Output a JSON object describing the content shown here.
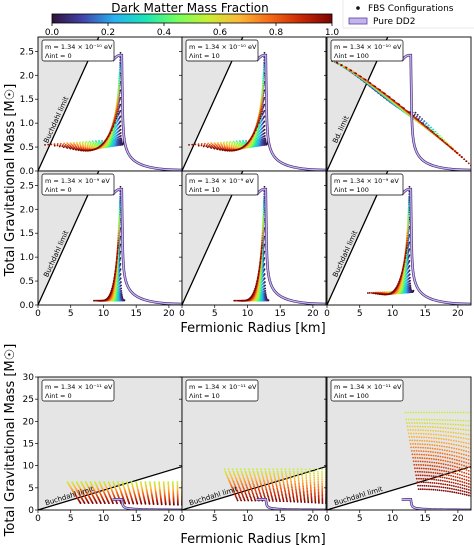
{
  "colorbar": {
    "title": "Dark Matter Mass Fraction",
    "ticks": [
      "0.0",
      "0.2",
      "0.4",
      "0.6",
      "0.8",
      "1.0"
    ],
    "colormap": [
      "#30123b",
      "#4145ab",
      "#2ab0f0",
      "#1ae4b6",
      "#72fe5e",
      "#c8ef34",
      "#fbb938",
      "#f56918",
      "#c92903",
      "#7a0403"
    ]
  },
  "legend": {
    "items": [
      {
        "label": "FBS Configurations",
        "marker": "dot",
        "color": "#111111"
      },
      {
        "label": "Pure DD2",
        "marker": "line",
        "color": "#8c7fd0"
      }
    ]
  },
  "axes_labels": {
    "top_ylabel": "Total Gravitational Mass [M☉]",
    "top_xlabel": "Fermionic Radius [km]",
    "bottom_ylabel": "Total Gravitational Mass [M☉]",
    "bottom_xlabel": "Fermionic Radius [km]"
  },
  "chart_data": [
    {
      "type": "scatter",
      "block": "top",
      "xlim": [
        0,
        22
      ],
      "ylim": [
        0,
        2.8
      ],
      "xticks": [
        0,
        5,
        10,
        15,
        20
      ],
      "yticks": [
        0.0,
        0.5,
        1.0,
        1.5,
        2.0,
        2.5
      ],
      "xlabel": "Fermionic Radius [km]",
      "ylabel": "Total Gravitational Mass [M☉]",
      "panels": [
        {
          "id": "m1e-10_L0",
          "row": 0,
          "col": 0,
          "mass": "m = 1.34 × 10⁻¹⁰ eV",
          "lambda": "Λint = 0",
          "buchdahl_label": "Buchdahl limit",
          "dd2_peak": [
            12.6,
            2.42
          ],
          "start_mass": 0.62,
          "start_x": 0.5,
          "arc_extent": 0.95
        },
        {
          "id": "m1e-10_L10",
          "row": 0,
          "col": 1,
          "mass": "m = 1.34 × 10⁻¹⁰ eV",
          "lambda": "Λint = 10",
          "buchdahl_label": "",
          "dd2_peak": [
            12.6,
            2.42
          ],
          "start_mass": 0.62,
          "start_x": 0.5,
          "arc_extent": 0.95
        },
        {
          "id": "m1e-10_L100",
          "row": 0,
          "col": 2,
          "mass": "m = 1.34 × 10⁻¹⁰ eV",
          "lambda": "Λint = 100",
          "buchdahl_label": "Bd. limit",
          "dd2_peak": [
            12.6,
            2.42
          ],
          "start_mass": 2.3,
          "start_x": 0.8,
          "arc_extent": 0.9
        },
        {
          "id": "m1e-9_L0",
          "row": 1,
          "col": 0,
          "mass": "m = 1.34 × 10⁻⁹ eV",
          "lambda": "Λint = 0",
          "buchdahl_label": "Buchdahl limit",
          "dd2_peak": [
            12.6,
            2.42
          ],
          "start_mass": 0.05,
          "start_x": 0.5,
          "arc_extent": 0.3
        },
        {
          "id": "m1e-9_L10",
          "row": 1,
          "col": 1,
          "mass": "m = 1.34 × 10⁻⁹ eV",
          "lambda": "Λint = 10",
          "buchdahl_label": "",
          "dd2_peak": [
            12.6,
            2.42
          ],
          "start_mass": 0.05,
          "start_x": 0.5,
          "arc_extent": 0.35
        },
        {
          "id": "m1e-9_L100",
          "row": 1,
          "col": 2,
          "mass": "m = 1.34 × 10⁻⁹ eV",
          "lambda": "Λint = 100",
          "buchdahl_label": "Buchdahl limit",
          "dd2_peak": [
            12.6,
            2.42
          ],
          "start_mass": 0.25,
          "start_x": 0.5,
          "arc_extent": 0.5
        }
      ]
    },
    {
      "type": "scatter",
      "block": "bottom",
      "xlim": [
        0,
        22
      ],
      "ylim": [
        0,
        30
      ],
      "xticks": [
        0,
        5,
        10,
        15,
        20
      ],
      "yticks": [
        0,
        5,
        10,
        15,
        20,
        25,
        30
      ],
      "xlabel": "Fermionic Radius [km]",
      "ylabel": "Total Gravitational Mass [M☉]",
      "panels": [
        {
          "id": "m1e-11_L0",
          "col": 0,
          "mass": "m = 1.34 × 10⁻¹¹ eV",
          "lambda": "Λint = 0",
          "buchdahl_label": "Buchdahl limit",
          "plateau": 6.3,
          "start_x": 4.5
        },
        {
          "id": "m1e-11_L10",
          "col": 1,
          "mass": "m = 1.34 × 10⁻¹¹ eV",
          "lambda": "Λint = 10",
          "buchdahl_label": "Buchdahl limit",
          "plateau": 9.2,
          "start_x": 6.5
        },
        {
          "id": "m1e-11_L100",
          "col": 2,
          "mass": "m = 1.34 × 10⁻¹¹ eV",
          "lambda": "Λint = 100",
          "buchdahl_label": "Buchdahl limit",
          "plateau": 22.0,
          "start_x": 12.0
        }
      ]
    }
  ]
}
